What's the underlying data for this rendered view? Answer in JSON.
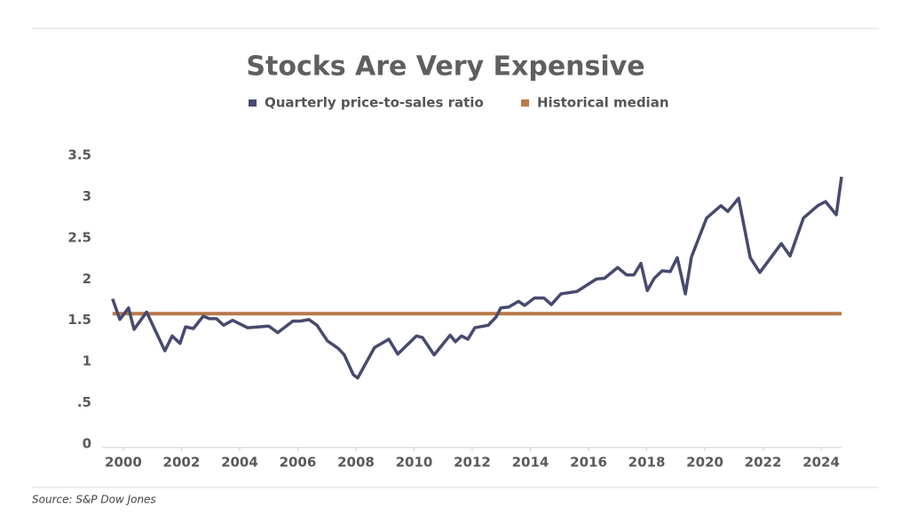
{
  "chart_data": {
    "type": "line",
    "title": "Stocks Are Very Expensive",
    "source": "Source: S&P Dow Jones",
    "xlim": [
      1999.27,
      2024.7
    ],
    "xticks": [
      2000,
      2002,
      2004,
      2006,
      2008,
      2010,
      2012,
      2014,
      2016,
      2018,
      2020,
      2022,
      2024
    ],
    "ylim": [
      0,
      3.5
    ],
    "yticks": [
      0,
      {
        "value": 0.5,
        "label": ".5"
      },
      1,
      1.5,
      2,
      2.5,
      3,
      3.5
    ],
    "series": [
      {
        "name": "Quarterly price-to-sales ratio",
        "color": "#474a6e",
        "x": [
          1999.63,
          1999.88,
          2000.18,
          2000.37,
          2000.8,
          2001.43,
          2001.68,
          2001.95,
          2002.14,
          2002.41,
          2002.75,
          2002.96,
          2003.2,
          2003.45,
          2003.76,
          2004.27,
          2005.0,
          2005.31,
          2005.83,
          2006.1,
          2006.38,
          2006.66,
          2007.02,
          2007.39,
          2007.6,
          2007.91,
          2008.06,
          2008.64,
          2009.13,
          2009.44,
          2010.08,
          2010.29,
          2010.69,
          2011.24,
          2011.42,
          2011.63,
          2011.85,
          2012.09,
          2012.55,
          2012.82,
          2012.98,
          2013.25,
          2013.59,
          2013.8,
          2014.14,
          2014.47,
          2014.72,
          2015.05,
          2015.6,
          2016.27,
          2016.55,
          2017.0,
          2017.31,
          2017.56,
          2017.8,
          2018.02,
          2018.26,
          2018.53,
          2018.81,
          2019.05,
          2019.33,
          2019.54,
          2020.06,
          2020.55,
          2020.79,
          2021.16,
          2021.56,
          2021.89,
          2022.63,
          2022.93,
          2023.39,
          2023.88,
          2024.15,
          2024.52,
          2024.7
        ],
        "values": [
          1.76,
          1.51,
          1.65,
          1.39,
          1.6,
          1.13,
          1.31,
          1.22,
          1.42,
          1.4,
          1.55,
          1.52,
          1.52,
          1.44,
          1.5,
          1.41,
          1.43,
          1.35,
          1.49,
          1.49,
          1.51,
          1.44,
          1.25,
          1.16,
          1.08,
          0.84,
          0.8,
          1.17,
          1.27,
          1.09,
          1.31,
          1.29,
          1.08,
          1.32,
          1.24,
          1.31,
          1.27,
          1.41,
          1.44,
          1.54,
          1.65,
          1.66,
          1.73,
          1.68,
          1.77,
          1.77,
          1.69,
          1.82,
          1.85,
          2.0,
          2.01,
          2.14,
          2.05,
          2.05,
          2.19,
          1.86,
          2.01,
          2.1,
          2.09,
          2.26,
          1.82,
          2.27,
          2.74,
          2.89,
          2.82,
          2.98,
          2.26,
          2.08,
          2.43,
          2.28,
          2.74,
          2.89,
          2.94,
          2.78,
          3.24
        ]
      },
      {
        "name": "Historical median",
        "color": "#b8794a",
        "x": [
          1999.63,
          2024.7
        ],
        "values": [
          1.58,
          1.58
        ]
      }
    ]
  }
}
